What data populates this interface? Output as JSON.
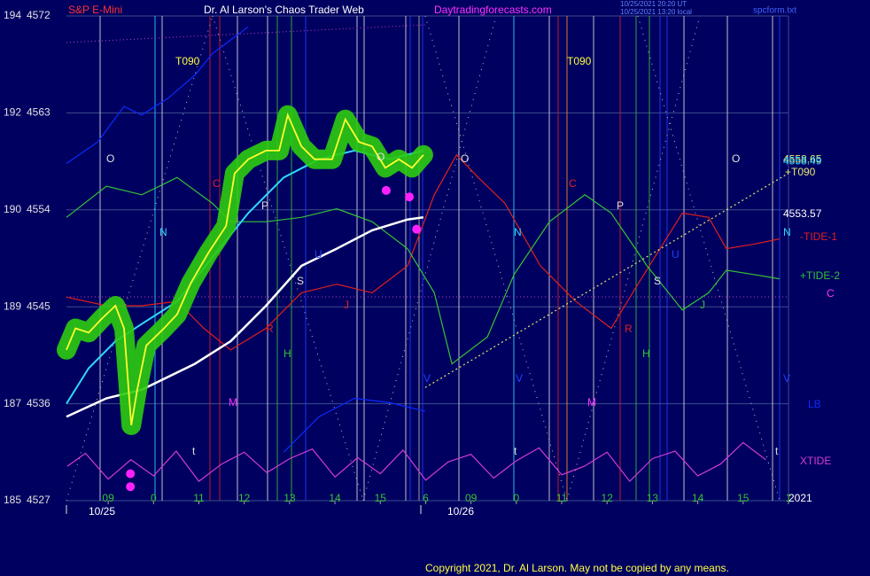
{
  "chart_data": {
    "type": "line",
    "symbol": "S&P E-Mini",
    "title": "Dr. Al Larson's Chaos Trader Web",
    "website": "Daytradingforecasts.com",
    "timestamps": [
      "10/25/2021 20:20 UT",
      "10/25/2021 13:20 local"
    ],
    "file_label": "spcform.txt",
    "copyright": "Copyright 2021, Dr. Al Larson. May not be copied by any means.",
    "ylim": [
      4527,
      4572
    ],
    "yticks": [
      4527,
      4536,
      4545,
      4554,
      4563,
      4572
    ],
    "degree_labels": [
      "185",
      "187",
      "189",
      "190",
      "192",
      "194"
    ],
    "xlim": [
      -0.92,
      15
    ],
    "xticks": [
      {
        "value": 0,
        "label": "09"
      },
      {
        "value": 1,
        "label": "0"
      },
      {
        "value": 2,
        "label": "11"
      },
      {
        "value": 3,
        "label": "12"
      },
      {
        "value": 4,
        "label": "13"
      },
      {
        "value": 5,
        "label": "14"
      },
      {
        "value": 6,
        "label": "15"
      },
      {
        "value": 7,
        "label": "6"
      },
      {
        "value": 8,
        "label": "09"
      },
      {
        "value": 9,
        "label": "0"
      },
      {
        "value": 10,
        "label": "11"
      },
      {
        "value": 11,
        "label": "12"
      },
      {
        "value": 12,
        "label": "13"
      },
      {
        "value": 13,
        "label": "14"
      },
      {
        "value": 14,
        "label": "15"
      },
      {
        "value": 15,
        "label": "1"
      }
    ],
    "date_labels": [
      "10/25",
      "10/26"
    ],
    "grid": true,
    "series": [
      {
        "name": "LB",
        "color": "#0a2cff",
        "dashed": false,
        "x": [
          -0.92,
          -0.23,
          0.35,
          0.74,
          1.33,
          1.91,
          2.3,
          3.09,
          null,
          3.87,
          4.65,
          5.43,
          6.21,
          6.99
        ],
        "values": [
          4558.3,
          4560.3,
          4563.6,
          4562.8,
          4564.4,
          4566.5,
          4568.5,
          4571.0,
          null,
          4531.5,
          4534.8,
          4536.5,
          4536.1,
          4535.3
        ]
      },
      {
        "name": "-TIDE-1",
        "color": "#e0201c",
        "dashed": false,
        "x": [
          -0.92,
          -0.04,
          0.74,
          1.52,
          2.11,
          2.7,
          3.48,
          4.26,
          5.04,
          5.82,
          6.6,
          7.19,
          7.68,
          8.16,
          8.75,
          9.53,
          10.31,
          11.09,
          11.68,
          12.66,
          13.24,
          13.63,
          14.22,
          14.8
        ],
        "values": [
          4545.9,
          4545.1,
          4545.1,
          4545.5,
          4543.0,
          4541.0,
          4543.0,
          4546.3,
          4547.1,
          4546.3,
          4548.8,
          4555.4,
          4559.1,
          4557.0,
          4554.6,
          4548.8,
          4545.5,
          4543.0,
          4547.1,
          4553.7,
          4553.3,
          4550.4,
          4550.8,
          4551.3
        ]
      },
      {
        "name": "+TIDE-2",
        "color": "#35c335",
        "dashed": false,
        "x": [
          -0.92,
          -0.04,
          0.74,
          1.52,
          2.3,
          2.7,
          3.48,
          4.26,
          5.04,
          5.82,
          6.6,
          7.19,
          7.58,
          8.36,
          8.95,
          9.73,
          10.51,
          11.09,
          11.88,
          12.66,
          13.24,
          13.63,
          14.22,
          14.8
        ],
        "values": [
          4553.3,
          4556.2,
          4555.4,
          4557.0,
          4554.6,
          4552.9,
          4552.9,
          4553.3,
          4554.1,
          4552.9,
          4550.4,
          4546.3,
          4539.7,
          4542.2,
          4548.0,
          4552.9,
          4555.4,
          4553.7,
          4548.8,
          4544.7,
          4546.3,
          4548.4,
          4548.0,
          4547.6
        ]
      },
      {
        "name": "XTIDE",
        "color": "#d23cd2",
        "dashed": false,
        "x": [
          -0.9,
          -0.5,
          0,
          0.5,
          1,
          1.5,
          2,
          2.5,
          3,
          3.5,
          4,
          4.5,
          5,
          5.5,
          6,
          6.5,
          7,
          7.5,
          8,
          8.5,
          9,
          9.5,
          10,
          10.5,
          11,
          11.5,
          12,
          12.5,
          13,
          13.5,
          14,
          14.5
        ],
        "values": [
          4530.2,
          4531.4,
          4529.0,
          4530.8,
          4529.3,
          4531.6,
          4528.8,
          4530.4,
          4531.5,
          4529.6,
          4530.9,
          4531.8,
          4529.2,
          4531.0,
          4529.5,
          4531.7,
          4528.9,
          4530.6,
          4531.3,
          4529.1,
          4530.7,
          4531.9,
          4529.4,
          4530.2,
          4531.5,
          4528.8,
          4530.9,
          4531.6,
          4529.3,
          4530.4,
          4532.4,
          4530.8
        ]
      },
      {
        "name": "+T090",
        "color": "#e8e870",
        "dashed": true,
        "x": [
          6.99,
          15
        ],
        "values": [
          4537.5,
          4557.4
        ]
      },
      {
        "color": "#ffffff",
        "dashed": false,
        "width": 2.5,
        "x": [
          -0.92,
          -0.04,
          0.74,
          1.91,
          2.7,
          3.48,
          4.26,
          5.04,
          5.82,
          6.6,
          6.95
        ],
        "values": [
          4534.8,
          4536.5,
          4537.3,
          4539.7,
          4541.8,
          4545.1,
          4548.8,
          4550.4,
          4552.1,
          4553.1,
          4553.3
        ]
      },
      {
        "color": "#30d8ff",
        "dashed": false,
        "width": 2,
        "x": [
          -0.92,
          -0.43,
          0.16,
          0.74,
          1.52,
          2.3,
          3.09,
          3.87,
          4.65,
          5.43,
          6.21,
          6.95
        ],
        "values": [
          4536.0,
          4539.3,
          4541.8,
          4543.4,
          4545.5,
          4549.6,
          4553.7,
          4557.0,
          4558.7,
          4559.5,
          4558.7,
          4559.5
        ]
      },
      {
        "color": "#ffff30",
        "dashed": false,
        "width": 1.8,
        "glow": "#2ccc10",
        "x": [
          -0.92,
          -0.72,
          -0.43,
          -0.14,
          0.16,
          0.35,
          0.51,
          0.64,
          0.84,
          1.23,
          1.52,
          1.82,
          2.21,
          2.6,
          2.79,
          3.09,
          3.48,
          3.77,
          3.96,
          4.26,
          4.55,
          4.94,
          5.23,
          5.53,
          5.82,
          6.11,
          6.41,
          6.7,
          6.95
        ],
        "values": [
          4541.0,
          4543.0,
          4542.6,
          4543.9,
          4545.1,
          4543.0,
          4534.0,
          4537.3,
          4541.4,
          4543.0,
          4544.3,
          4547.2,
          4550.0,
          4552.5,
          4557.4,
          4558.7,
          4559.5,
          4559.5,
          4562.8,
          4559.9,
          4558.7,
          4558.7,
          4562.4,
          4560.3,
          4559.9,
          4557.9,
          4558.7,
          4557.9,
          4559.1
        ]
      }
    ],
    "points": {
      "color": "#ff20ff",
      "x": [
        0.49,
        0.49,
        6.13,
        6.64,
        6.8
      ],
      "values": [
        4528.3,
        4529.5,
        4555.8,
        4555.2,
        4552.2
      ]
    },
    "price_labels": [
      4558.65,
      4558.49,
      4553.57
    ],
    "annotations": [
      "T090",
      "T090",
      "O",
      "O",
      "O",
      "O",
      "N",
      "N",
      "N",
      "C",
      "C",
      "P",
      "P",
      "U",
      "U",
      "S",
      "S",
      "J",
      "J",
      "R",
      "R",
      "H",
      "H",
      "M",
      "M",
      "t",
      "t",
      "t",
      "V",
      "V",
      "V",
      "C",
      "2021"
    ]
  }
}
